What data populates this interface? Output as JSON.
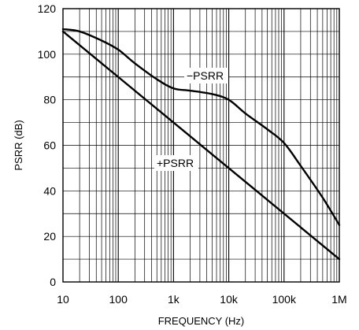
{
  "chart_data": {
    "type": "line",
    "title": "",
    "xlabel": "FREQUENCY (Hz)",
    "ylabel": "PSRR (dB)",
    "x_scale": "log",
    "xlim": [
      10,
      1000000
    ],
    "ylim": [
      0,
      120
    ],
    "x_ticks": [
      10,
      100,
      1000,
      10000,
      100000,
      1000000
    ],
    "x_tick_labels": [
      "10",
      "100",
      "1k",
      "10k",
      "100k",
      "1M"
    ],
    "y_ticks": [
      0,
      20,
      40,
      60,
      80,
      100,
      120
    ],
    "y_tick_labels": [
      "0",
      "20",
      "40",
      "60",
      "80",
      "100",
      "120"
    ],
    "grid": true,
    "series": [
      {
        "name": "−PSRR",
        "x": [
          10,
          20,
          50,
          100,
          200,
          500,
          1000,
          2000,
          5000,
          10000,
          20000,
          50000,
          100000,
          200000,
          500000,
          1000000
        ],
        "y": [
          111,
          110,
          106,
          102,
          96,
          89,
          85,
          84,
          82.5,
          80,
          74,
          67,
          61,
          51,
          37,
          25
        ]
      },
      {
        "name": "+PSRR",
        "x": [
          10,
          100,
          1000,
          10000,
          100000,
          1000000
        ],
        "y": [
          110,
          90,
          70,
          50,
          30,
          10
        ]
      }
    ],
    "annotations": [
      {
        "text": "−PSRR",
        "series": 0
      },
      {
        "text": "+PSRR",
        "series": 1
      }
    ]
  }
}
